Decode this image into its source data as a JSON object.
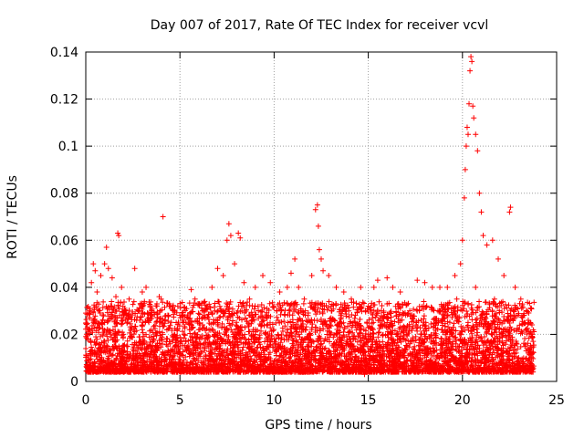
{
  "chart_data": {
    "type": "scatter",
    "title": "Day 007 of 2017, Rate Of TEC Index for receiver vcvl",
    "xlabel": "GPS time / hours",
    "ylabel": "ROTI / TECUs",
    "xlim": [
      0,
      25
    ],
    "ylim": [
      0,
      0.14
    ],
    "xticks": [
      "0",
      "5",
      "10",
      "15",
      "20",
      "25"
    ],
    "yticks": [
      "0",
      "0.02",
      "0.04",
      "0.06",
      "0.08",
      "0.1",
      "0.12",
      "0.14"
    ],
    "grid": true,
    "marker": "+",
    "marker_color": "#ff0000",
    "series": [
      {
        "name": "ROTI",
        "points": [
          [
            0.1,
            0.018
          ],
          [
            0.2,
            0.03
          ],
          [
            0.3,
            0.042
          ],
          [
            0.4,
            0.05
          ],
          [
            0.5,
            0.047
          ],
          [
            0.6,
            0.038
          ],
          [
            0.8,
            0.045
          ],
          [
            1.0,
            0.05
          ],
          [
            1.1,
            0.057
          ],
          [
            1.2,
            0.048
          ],
          [
            1.4,
            0.044
          ],
          [
            1.6,
            0.036
          ],
          [
            1.7,
            0.063
          ],
          [
            1.75,
            0.062
          ],
          [
            1.9,
            0.04
          ],
          [
            2.1,
            0.03
          ],
          [
            2.3,
            0.035
          ],
          [
            2.6,
            0.048
          ],
          [
            2.8,
            0.03
          ],
          [
            3.0,
            0.038
          ],
          [
            3.2,
            0.04
          ],
          [
            3.5,
            0.03
          ],
          [
            3.9,
            0.036
          ],
          [
            4.0,
            0.035
          ],
          [
            4.1,
            0.07
          ],
          [
            4.4,
            0.028
          ],
          [
            4.8,
            0.025
          ],
          [
            5.2,
            0.025
          ],
          [
            5.6,
            0.039
          ],
          [
            5.8,
            0.035
          ],
          [
            6.2,
            0.03
          ],
          [
            6.7,
            0.04
          ],
          [
            7.0,
            0.048
          ],
          [
            7.3,
            0.045
          ],
          [
            7.5,
            0.06
          ],
          [
            7.6,
            0.067
          ],
          [
            7.7,
            0.062
          ],
          [
            7.9,
            0.05
          ],
          [
            8.1,
            0.063
          ],
          [
            8.2,
            0.061
          ],
          [
            8.4,
            0.042
          ],
          [
            8.7,
            0.035
          ],
          [
            9.0,
            0.04
          ],
          [
            9.4,
            0.045
          ],
          [
            9.8,
            0.042
          ],
          [
            10.3,
            0.038
          ],
          [
            10.7,
            0.04
          ],
          [
            10.9,
            0.046
          ],
          [
            11.1,
            0.052
          ],
          [
            11.3,
            0.04
          ],
          [
            11.6,
            0.035
          ],
          [
            12.0,
            0.045
          ],
          [
            12.2,
            0.073
          ],
          [
            12.3,
            0.075
          ],
          [
            12.35,
            0.066
          ],
          [
            12.4,
            0.056
          ],
          [
            12.5,
            0.052
          ],
          [
            12.6,
            0.047
          ],
          [
            12.9,
            0.045
          ],
          [
            13.3,
            0.04
          ],
          [
            13.7,
            0.038
          ],
          [
            14.1,
            0.035
          ],
          [
            14.6,
            0.04
          ],
          [
            15.0,
            0.032
          ],
          [
            15.3,
            0.04
          ],
          [
            15.5,
            0.043
          ],
          [
            16.0,
            0.044
          ],
          [
            16.3,
            0.04
          ],
          [
            16.7,
            0.038
          ],
          [
            17.2,
            0.03
          ],
          [
            17.6,
            0.043
          ],
          [
            18.0,
            0.042
          ],
          [
            18.4,
            0.04
          ],
          [
            18.8,
            0.04
          ],
          [
            19.2,
            0.04
          ],
          [
            19.6,
            0.045
          ],
          [
            19.9,
            0.05
          ],
          [
            20.0,
            0.06
          ],
          [
            20.1,
            0.078
          ],
          [
            20.15,
            0.09
          ],
          [
            20.2,
            0.1
          ],
          [
            20.25,
            0.108
          ],
          [
            20.3,
            0.105
          ],
          [
            20.35,
            0.118
          ],
          [
            20.4,
            0.132
          ],
          [
            20.45,
            0.138
          ],
          [
            20.5,
            0.136
          ],
          [
            20.55,
            0.117
          ],
          [
            20.6,
            0.112
          ],
          [
            20.7,
            0.105
          ],
          [
            20.8,
            0.098
          ],
          [
            20.9,
            0.08
          ],
          [
            21.0,
            0.072
          ],
          [
            21.1,
            0.062
          ],
          [
            21.3,
            0.058
          ],
          [
            21.6,
            0.06
          ],
          [
            21.9,
            0.052
          ],
          [
            22.2,
            0.045
          ],
          [
            22.5,
            0.072
          ],
          [
            22.55,
            0.074
          ],
          [
            22.8,
            0.04
          ],
          [
            23.1,
            0.035
          ],
          [
            23.4,
            0.03
          ],
          [
            23.7,
            0.02
          ],
          [
            0.5,
            0.012
          ],
          [
            1.5,
            0.015
          ],
          [
            2.5,
            0.01
          ],
          [
            3.5,
            0.014
          ],
          [
            4.5,
            0.008
          ],
          [
            5.5,
            0.012
          ],
          [
            6.5,
            0.015
          ],
          [
            7.5,
            0.012
          ],
          [
            8.5,
            0.01
          ],
          [
            9.5,
            0.013
          ],
          [
            10.5,
            0.012
          ],
          [
            11.5,
            0.014
          ],
          [
            12.5,
            0.011
          ],
          [
            13.5,
            0.012
          ],
          [
            14.5,
            0.01
          ],
          [
            15.5,
            0.008
          ],
          [
            16.5,
            0.012
          ],
          [
            17.5,
            0.01
          ],
          [
            18.5,
            0.013
          ],
          [
            19.5,
            0.015
          ],
          [
            20.5,
            0.012
          ],
          [
            21.5,
            0.014
          ],
          [
            22.5,
            0.013
          ],
          [
            23.5,
            0.012
          ],
          [
            0.2,
            0.022
          ],
          [
            1.0,
            0.025
          ],
          [
            2.0,
            0.02
          ],
          [
            3.0,
            0.022
          ],
          [
            4.0,
            0.018
          ],
          [
            5.0,
            0.016
          ],
          [
            6.0,
            0.022
          ],
          [
            7.0,
            0.025
          ],
          [
            8.0,
            0.02
          ],
          [
            9.0,
            0.022
          ],
          [
            10.0,
            0.018
          ],
          [
            11.0,
            0.025
          ],
          [
            12.0,
            0.022
          ],
          [
            13.0,
            0.02
          ],
          [
            14.0,
            0.018
          ],
          [
            15.0,
            0.02
          ],
          [
            16.0,
            0.025
          ],
          [
            17.0,
            0.022
          ],
          [
            18.0,
            0.02
          ],
          [
            19.0,
            0.028
          ],
          [
            20.0,
            0.03
          ],
          [
            21.0,
            0.028
          ],
          [
            22.0,
            0.025
          ],
          [
            23.0,
            0.022
          ],
          [
            0.7,
            0.03
          ],
          [
            1.8,
            0.028
          ],
          [
            2.7,
            0.026
          ],
          [
            3.8,
            0.027
          ],
          [
            4.7,
            0.02
          ],
          [
            6.3,
            0.028
          ],
          [
            7.3,
            0.03
          ],
          [
            8.8,
            0.026
          ],
          [
            9.7,
            0.028
          ],
          [
            10.8,
            0.03
          ],
          [
            11.8,
            0.028
          ],
          [
            13.2,
            0.026
          ],
          [
            14.3,
            0.025
          ],
          [
            15.7,
            0.03
          ],
          [
            16.8,
            0.028
          ],
          [
            17.8,
            0.026
          ],
          [
            18.7,
            0.03
          ],
          [
            19.7,
            0.035
          ],
          [
            20.7,
            0.04
          ],
          [
            21.7,
            0.035
          ],
          [
            22.7,
            0.03
          ],
          [
            23.6,
            0.025
          ],
          [
            0.3,
            0.006
          ],
          [
            3.3,
            0.005
          ],
          [
            6.8,
            0.006
          ],
          [
            9.2,
            0.005
          ],
          [
            12.8,
            0.005
          ],
          [
            14.8,
            0.003
          ],
          [
            15.2,
            0.004
          ],
          [
            18.2,
            0.006
          ],
          [
            21.2,
            0.006
          ],
          [
            23.2,
            0.006
          ]
        ]
      }
    ]
  }
}
